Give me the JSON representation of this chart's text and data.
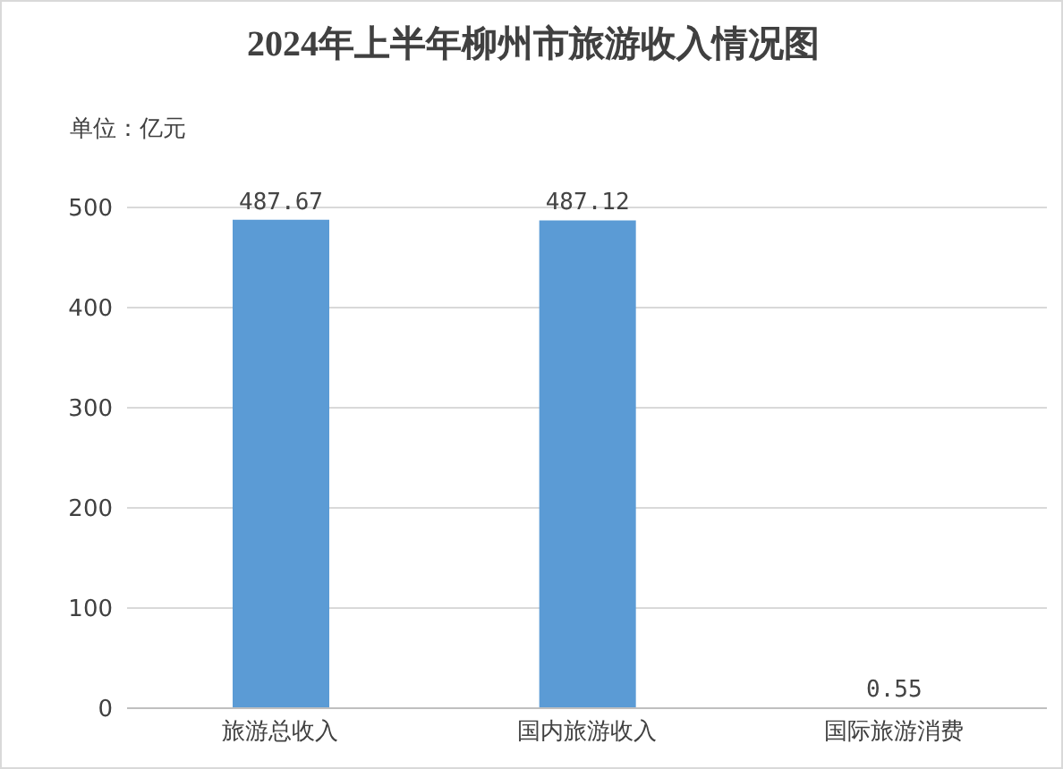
{
  "chart_data": {
    "type": "bar",
    "title": "2024年上半年柳州市旅游收入情况图",
    "ylabel": "单位：亿元",
    "categories": [
      "旅游总收入",
      "国内旅游收入",
      "国际旅游消费"
    ],
    "values": [
      487.67,
      487.12,
      0.55
    ],
    "color": "#5b9bd5",
    "ylim": [
      0,
      500
    ],
    "yticks": [
      0,
      100,
      200,
      300,
      400,
      500
    ],
    "grid": "y",
    "data_labels": true
  }
}
